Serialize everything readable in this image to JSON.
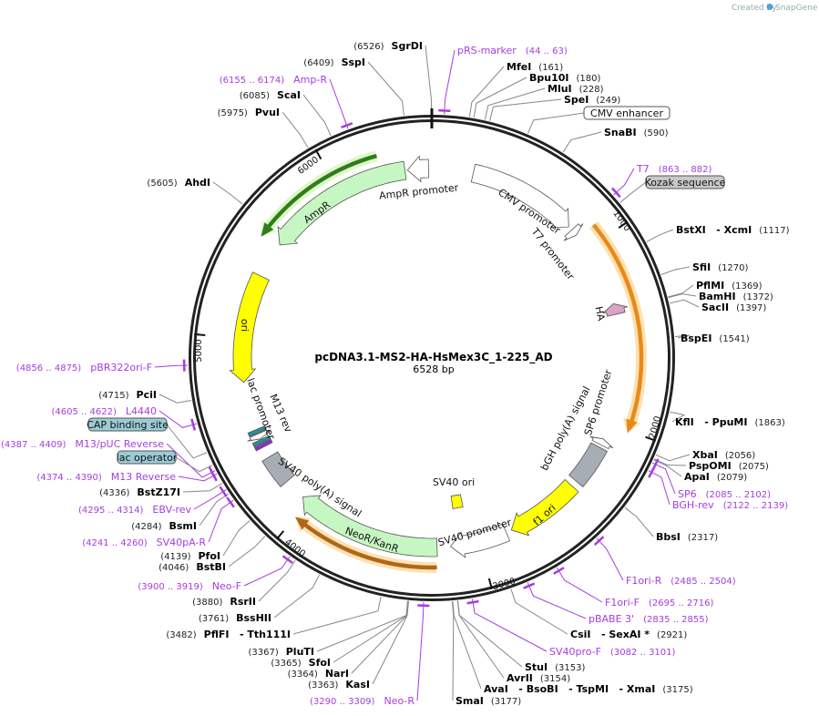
{
  "credit": {
    "text": "Created by",
    "brand": "SnapGene"
  },
  "plasmid": {
    "name": "pcDNA3.1-MS2-HA-HsMex3C_1-225_AD",
    "length_label": "6528 bp",
    "length": 6528
  },
  "ticks": [
    {
      "pos": 1000,
      "label": "1000"
    },
    {
      "pos": 2000,
      "label": "2000"
    },
    {
      "pos": 3000,
      "label": "3000"
    },
    {
      "pos": 4000,
      "label": "4000"
    },
    {
      "pos": 5000,
      "label": "5000"
    },
    {
      "pos": 6000,
      "label": "6000"
    }
  ],
  "features": [
    {
      "label": "AmpR",
      "start": 5560,
      "end": 6380,
      "track": "main",
      "dir": "rev",
      "color": "#c6f7c2"
    },
    {
      "label": "AmpR promoter",
      "start": 6394,
      "end": 6510,
      "track": "main",
      "dir": "rev",
      "color": "#ffffff"
    },
    {
      "label": "",
      "start": 5540,
      "end": 6250,
      "track": "outer",
      "dir": "rev",
      "color": "#2f7d1c",
      "halo": "#dff7c8"
    },
    {
      "label": "ori",
      "start": 4762,
      "end": 5360,
      "track": "main",
      "dir": "rev",
      "color": "#ffff00"
    },
    {
      "label": "CMV promoter",
      "start": 229,
      "end": 838,
      "track": "main",
      "dir": "fwd",
      "color": "#ffffff"
    },
    {
      "label": "T7 promoter",
      "start": 862,
      "end": 900,
      "track": "main",
      "dir": "fwd",
      "color": "#ffffff"
    },
    {
      "label": "",
      "start": 917,
      "end": 2011,
      "track": "outer",
      "dir": "fwd",
      "color": "#e88a1a",
      "halo": "#fde1b0"
    },
    {
      "label": "HA",
      "start": 1330,
      "end": 1390,
      "track": "main",
      "dir": "rev",
      "color": "#d9a3c6"
    },
    {
      "label": "SP6 promoter",
      "start": 2090,
      "end": 2125,
      "track": "main",
      "dir": "rev",
      "color": "#ffffff"
    },
    {
      "label": "bGH poly(A) signal",
      "start": 2140,
      "end": 2366,
      "track": "main",
      "dir": "none",
      "color": "#a7adb5"
    },
    {
      "label": "f1 ori",
      "start": 2401,
      "end": 2814,
      "track": "main",
      "dir": "fwd",
      "color": "#ffff00"
    },
    {
      "label": "SV40 promoter",
      "start": 2845,
      "end": 3161,
      "track": "main",
      "dir": "fwd",
      "color": "#ffffff"
    },
    {
      "label": "SV40 ori",
      "start": 3050,
      "end": 3120,
      "track": "inner",
      "dir": "none",
      "color": "#ffff00"
    },
    {
      "label": "NeoR/KanR",
      "start": 3235,
      "end": 4041,
      "track": "main",
      "dir": "fwd",
      "color": "#c6f7c2"
    },
    {
      "label": "",
      "start": 3240,
      "end": 4000,
      "track": "outer",
      "dir": "fwd",
      "color": "#b0661a",
      "halo": "#fde1b0"
    },
    {
      "label": "SV40 poly(A) signal",
      "start": 4163,
      "end": 4328,
      "track": "main",
      "dir": "none",
      "color": "#a7adb5"
    },
    {
      "label": "M13 rev",
      "start": 4390,
      "end": 4410,
      "track": "main",
      "dir": "none",
      "color": "#8a2fc9"
    },
    {
      "label": "lac operator",
      "start": 4414,
      "end": 4434,
      "track": "main",
      "dir": "none",
      "color": "#2f8a9a"
    },
    {
      "label": "lac promoter",
      "start": 4438,
      "end": 4468,
      "track": "main",
      "dir": "rev",
      "color": "#ffffff"
    },
    {
      "label": "CAP binding site",
      "start": 4472,
      "end": 4494,
      "track": "main",
      "dir": "none",
      "color": "#2f8a9a"
    }
  ],
  "enzymes": [
    {
      "name": "MfeI",
      "pos": "(161)",
      "bp": 161
    },
    {
      "name": "Bpu10I",
      "pos": "(180)",
      "bp": 180
    },
    {
      "name": "MluI",
      "pos": "(228)",
      "bp": 228
    },
    {
      "name": "SpeI",
      "pos": "(249)",
      "bp": 249
    },
    {
      "name": "SnaBI",
      "pos": "(590)",
      "bp": 590
    },
    {
      "name": "BstXI   - XcmI",
      "pos": "(1117)",
      "bp": 1117
    },
    {
      "name": "SfiI",
      "pos": "(1270)",
      "bp": 1270
    },
    {
      "name": "PflMI",
      "pos": "(1369)",
      "bp": 1369
    },
    {
      "name": "BamHI",
      "pos": "(1372)",
      "bp": 1372
    },
    {
      "name": "SacII",
      "pos": "(1397)",
      "bp": 1397
    },
    {
      "name": "BspEI",
      "pos": "(1541)",
      "bp": 1541
    },
    {
      "name": "KflI   - PpuMI",
      "pos": "(1863)",
      "bp": 1863
    },
    {
      "name": "XbaI",
      "pos": "(2056)",
      "bp": 2056
    },
    {
      "name": "PspOMI",
      "pos": "(2075)",
      "bp": 2075
    },
    {
      "name": "ApaI",
      "pos": "(2079)",
      "bp": 2079
    },
    {
      "name": "BbsI",
      "pos": "(2317)",
      "bp": 2317
    },
    {
      "name": "CsiI   - SexAI *",
      "pos": "(2921)",
      "bp": 2921
    },
    {
      "name": "StuI",
      "pos": "(3153)",
      "bp": 3153
    },
    {
      "name": "AvrII",
      "pos": "(3154)",
      "bp": 3154
    },
    {
      "name": "AvaI   - BsoBI   - TspMI   - XmaI",
      "pos": "(3175)",
      "bp": 3175
    },
    {
      "name": "SmaI",
      "pos": "(3177)",
      "bp": 3177
    },
    {
      "name": "KasI",
      "pos": "(3363)",
      "bp": 3363
    },
    {
      "name": "NarI",
      "pos": "(3364)",
      "bp": 3364
    },
    {
      "name": "SfoI",
      "pos": "(3365)",
      "bp": 3365
    },
    {
      "name": "PluTI",
      "pos": "(3367)",
      "bp": 3367
    },
    {
      "name": "PflFI   - Tth111I",
      "pos": "(3482)",
      "bp": 3482
    },
    {
      "name": "BssHII",
      "pos": "(3761)",
      "bp": 3761
    },
    {
      "name": "RsrII",
      "pos": "(3880)",
      "bp": 3880
    },
    {
      "name": "BstBI",
      "pos": "(4046)",
      "bp": 4046
    },
    {
      "name": "PfoI",
      "pos": "(4139)",
      "bp": 4139
    },
    {
      "name": "BsmI",
      "pos": "(4284)",
      "bp": 4284
    },
    {
      "name": "BstZ17I",
      "pos": "(4336)",
      "bp": 4336
    },
    {
      "name": "PciI",
      "pos": "(4715)",
      "bp": 4715
    },
    {
      "name": "AhdI",
      "pos": "(5605)",
      "bp": 5605
    },
    {
      "name": "PvuI",
      "pos": "(5975)",
      "bp": 5975
    },
    {
      "name": "ScaI",
      "pos": "(6085)",
      "bp": 6085
    },
    {
      "name": "SspI",
      "pos": "(6409)",
      "bp": 6409
    },
    {
      "name": "SgrDI",
      "pos": "(6526)",
      "bp": 6526
    }
  ],
  "primers": [
    {
      "name": "pRS-marker",
      "range": "(44 .. 63)",
      "bp": 53
    },
    {
      "name": "T7",
      "range": "(863 .. 882)",
      "bp": 872
    },
    {
      "name": "SP6",
      "range": "(2085 .. 2102)",
      "bp": 2093
    },
    {
      "name": "BGH-rev",
      "range": "(2122 .. 2139)",
      "bp": 2130
    },
    {
      "name": "F1ori-R",
      "range": "(2485 .. 2504)",
      "bp": 2494
    },
    {
      "name": "F1ori-F",
      "range": "(2695 .. 2716)",
      "bp": 2705
    },
    {
      "name": "pBABE 3'",
      "range": "(2835 .. 2855)",
      "bp": 2845
    },
    {
      "name": "SV40pro-F",
      "range": "(3082 .. 3101)",
      "bp": 3091
    },
    {
      "name": "Neo-R",
      "range": "(3290 .. 3309)",
      "bp": 3299
    },
    {
      "name": "Neo-F",
      "range": "(3900 .. 3919)",
      "bp": 3909
    },
    {
      "name": "SV40pA-R",
      "range": "(4241 .. 4260)",
      "bp": 4250
    },
    {
      "name": "EBV-rev",
      "range": "(4295 .. 4314)",
      "bp": 4304
    },
    {
      "name": "M13 Reverse",
      "range": "(4374 .. 4390)",
      "bp": 4382
    },
    {
      "name": "M13/pUC Reverse",
      "range": "(4387 .. 4409)",
      "bp": 4398
    },
    {
      "name": "L4440",
      "range": "(4605 .. 4622)",
      "bp": 4613
    },
    {
      "name": "pBR322ori-F",
      "range": "(4856 .. 4875)",
      "bp": 4865
    },
    {
      "name": "Amp-R",
      "range": "(6155 .. 6174)",
      "bp": 6164
    }
  ],
  "boxed_labels": [
    {
      "label": "CMV enhancer",
      "bp": 420,
      "fill": "#ffffff"
    },
    {
      "label": "Kozak sequence",
      "bp": 915,
      "fill": "#c8c8c8"
    },
    {
      "label": "CAP binding site",
      "bp": 4483,
      "fill": "#9ccbd6"
    },
    {
      "label": "lac operator",
      "bp": 4424,
      "fill": "#9ccbd6"
    }
  ]
}
